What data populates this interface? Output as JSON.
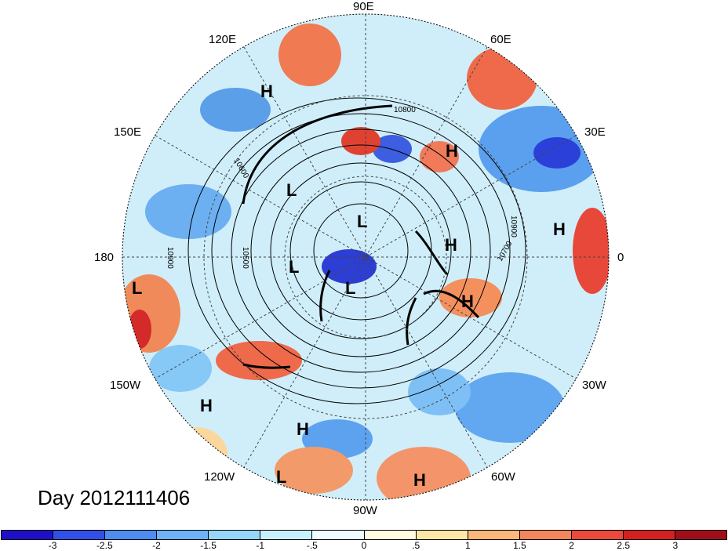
{
  "title": "Day 2012111406",
  "longitude_labels": {
    "lon_90e": "90E",
    "lon_120e": "120E",
    "lon_60e": "60E",
    "lon_150e": "150E",
    "lon_30e": "30E",
    "lon_180": "180",
    "lon_0": "0",
    "lon_150w": "150W",
    "lon_30w": "30W",
    "lon_120w": "120W",
    "lon_60w": "60W",
    "lon_90w": "90W"
  },
  "pressure_centers": [
    {
      "label": "H"
    },
    {
      "label": "L"
    },
    {
      "label": "L"
    },
    {
      "label": "L"
    },
    {
      "label": "H"
    },
    {
      "label": "H"
    },
    {
      "label": "L"
    },
    {
      "label": "H"
    },
    {
      "label": "L"
    },
    {
      "label": "H"
    },
    {
      "label": "H"
    },
    {
      "label": "H"
    },
    {
      "label": "L"
    },
    {
      "label": "H"
    }
  ],
  "contour_labels": [
    "10800",
    "10900",
    "10700",
    "10500",
    "10900",
    "10600"
  ],
  "colorbar": {
    "colors": [
      "#1e10c8",
      "#3250e6",
      "#4e8cf0",
      "#6eb2f5",
      "#96d6fa",
      "#c8f0fc",
      "#eefcff",
      "#fffbe0",
      "#fde7a8",
      "#f9b77c",
      "#f3865c",
      "#ea4a3a",
      "#d42020",
      "#a00e1a"
    ],
    "ticks": [
      "-3",
      "-2.5",
      "-2",
      "-1.5",
      "-1",
      "-.5",
      "0",
      ".5",
      "1",
      "1.5",
      "2",
      "2.5",
      "3"
    ]
  }
}
